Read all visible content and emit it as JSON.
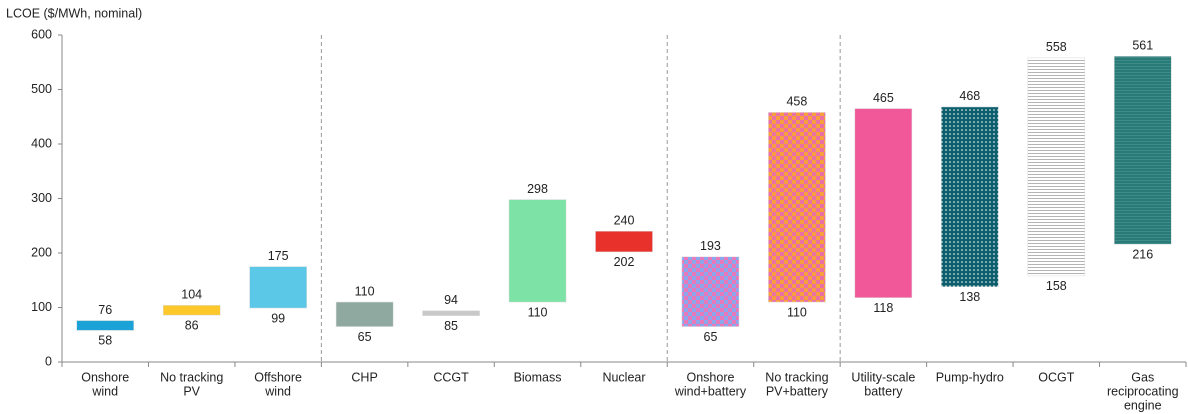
{
  "chart_data": {
    "type": "floating-bar",
    "y_label": "LCOE ($/MWh, nominal)",
    "categories": [
      [
        "Onshore",
        "wind"
      ],
      [
        "No tracking",
        "PV"
      ],
      [
        "Offshore",
        "wind"
      ],
      [
        "CHP"
      ],
      [
        "CCGT"
      ],
      [
        "Biomass"
      ],
      [
        "Nuclear"
      ],
      [
        "Onshore",
        "wind+battery"
      ],
      [
        "No tracking",
        "PV+battery"
      ],
      [
        "Utility-scale",
        "battery"
      ],
      [
        "Pump-hydro"
      ],
      [
        "OCGT"
      ],
      [
        "Gas",
        "reciprocating",
        "engine"
      ]
    ],
    "values": [
      [
        58,
        76
      ],
      [
        86,
        104
      ],
      [
        99,
        175
      ],
      [
        65,
        110
      ],
      [
        85,
        94
      ],
      [
        110,
        298
      ],
      [
        202,
        240
      ],
      [
        65,
        193
      ],
      [
        110,
        458
      ],
      [
        118,
        465
      ],
      [
        138,
        468
      ],
      [
        158,
        558
      ],
      [
        216,
        561
      ]
    ],
    "fills": [
      {
        "color": "#1ba3d8"
      },
      {
        "color": "#fcc82b"
      },
      {
        "color": "#5bc8e8"
      },
      {
        "color": "#8fa9a0"
      },
      {
        "color": "#c8c8c8"
      },
      {
        "color": "#7de2a5"
      },
      {
        "color": "#e8312a"
      },
      {
        "color": "#e878b8",
        "pattern": "checker",
        "color2": "#8aa6ec"
      },
      {
        "color": "#f5a03c",
        "pattern": "checker",
        "color2": "#ec70a8"
      },
      {
        "color": "#f0589a"
      },
      {
        "color": "#0e5f6e",
        "pattern": "dots",
        "color2": "#ffffff"
      },
      {
        "color": "#ffffff",
        "pattern": "lines",
        "color2": "#b4b4b4"
      },
      {
        "color": "#2a7a78",
        "pattern": "lines",
        "color2": "#3d8c89"
      }
    ],
    "separators_after": [
      2,
      6,
      8
    ],
    "ylim": [
      0,
      600
    ],
    "yticks": [
      0,
      100,
      200,
      300,
      400,
      500,
      600
    ]
  }
}
